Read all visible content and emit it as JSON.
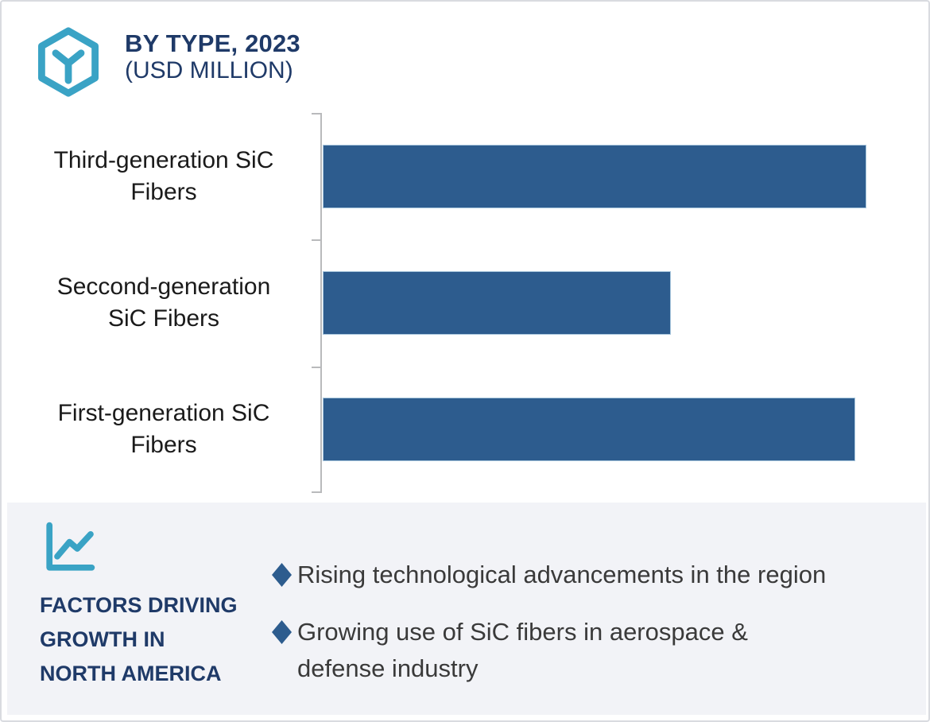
{
  "header": {
    "icon": "hexagon-cube-icon",
    "title_line1": "BY TYPE, 2023",
    "title_line2": "(USD MILLION)"
  },
  "chart_data": {
    "type": "bar",
    "orientation": "horizontal",
    "title": "BY TYPE, 2023 (USD MILLION)",
    "unit": "USD Million",
    "categories": [
      "Third-generation SiC Fibers",
      "Seccond-generation SiC Fibers",
      "First-generation SiC Fibers"
    ],
    "category_label_lines": [
      [
        "Third-generation SiC",
        "Fibers"
      ],
      [
        "Seccond-generation",
        "SiC Fibers"
      ],
      [
        "First-generation SiC",
        "Fibers"
      ]
    ],
    "values_relative_pct_of_max": [
      100,
      64,
      98
    ],
    "value_labels_shown": false,
    "value_axis_shown": false,
    "grid": false,
    "legend": false,
    "bar_color": "#2d5c8e",
    "axis_color": "#b9babc"
  },
  "factors_panel": {
    "icon": "line-chart-icon",
    "heading": "FACTORS DRIVING GROWTH IN NORTH AMERICA",
    "heading_lines": [
      "FACTORS DRIVING",
      "GROWTH IN",
      "NORTH AMERICA"
    ],
    "bullet_marker": "diamond-icon",
    "bullets": [
      "Rising technological advancements in the region",
      "Growing use of SiC fibers in aerospace & defense industry"
    ]
  },
  "colors": {
    "navy": "#1f3a68",
    "teal": "#3aa3c5",
    "bar_blue": "#2d5c8e",
    "panel_bg": "#f2f3f7",
    "border": "#d9dbe0",
    "axis_gray": "#b9babc",
    "bullet_text": "#3a3a3a"
  }
}
